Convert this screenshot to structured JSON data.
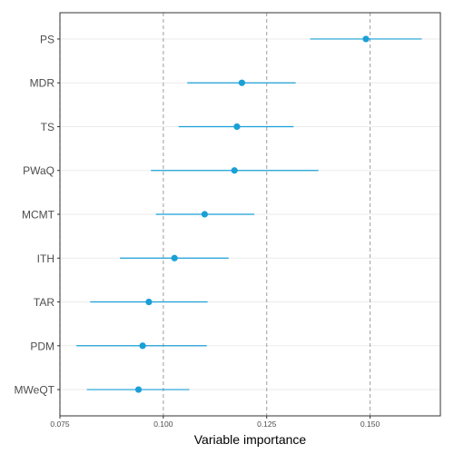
{
  "chart_data": {
    "type": "scatter",
    "title": "",
    "xlabel": "Variable importance",
    "ylabel": "",
    "xlim": [
      0.075,
      0.167
    ],
    "x_ticks": [
      "0.075",
      "0.100",
      "0.125",
      "0.150"
    ],
    "x_tick_values": [
      0.075,
      0.1,
      0.125,
      0.15
    ],
    "reference_lines": [
      0.075,
      0.1,
      0.125,
      0.15
    ],
    "grid": "horizontal",
    "legend": "none",
    "colors": {
      "point": "#1a9fd6",
      "reference_line": "#a6a6a6",
      "grid": "#ebebeb",
      "frame": "#333333"
    },
    "categories": [
      "PS",
      "MDR",
      "TS",
      "PWaQ",
      "MCMT",
      "ITH",
      "TAR",
      "PDM",
      "MWeQT"
    ],
    "values": [
      0.149,
      0.119,
      0.1178,
      0.1172,
      0.11,
      0.1027,
      0.0965,
      0.095,
      0.094
    ],
    "lower": [
      0.1355,
      0.1058,
      0.1037,
      0.097,
      0.0982,
      0.0895,
      0.0823,
      0.079,
      0.0815
    ],
    "upper": [
      0.1625,
      0.132,
      0.1315,
      0.1375,
      0.122,
      0.1158,
      0.1107,
      0.1105,
      0.1063
    ]
  }
}
